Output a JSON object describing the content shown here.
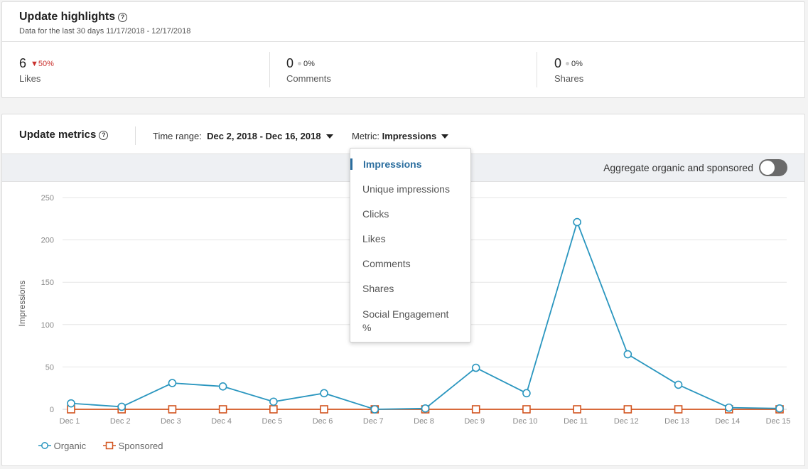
{
  "highlights": {
    "title": "Update highlights",
    "help": "?",
    "subtitle": "Data for the last 30 days 11/17/2018 - 12/17/2018",
    "stats": [
      {
        "value": "6",
        "delta": "50%",
        "delta_dir": "down",
        "label": "Likes"
      },
      {
        "value": "0",
        "delta": "0%",
        "delta_dir": "flat",
        "label": "Comments"
      },
      {
        "value": "0",
        "delta": "0%",
        "delta_dir": "flat",
        "label": "Shares"
      }
    ]
  },
  "metrics": {
    "title": "Update metrics",
    "help": "?",
    "time_range_label": "Time range:",
    "time_range_value": "Dec 2, 2018 - Dec 16, 2018",
    "metric_label": "Metric:",
    "metric_value": "Impressions",
    "aggregate_label": "Aggregate organic and sponsored",
    "aggregate_on": false
  },
  "dropdown": {
    "items": [
      "Impressions",
      "Unique impressions",
      "Clicks",
      "Likes",
      "Comments",
      "Shares",
      "Social Engagement",
      "%"
    ],
    "selected": "Impressions"
  },
  "colors": {
    "organic": "#2a96bf",
    "sponsored": "#d2541f",
    "grid": "#e6e6e6",
    "axis_text": "#888888"
  },
  "chart_data": {
    "type": "line",
    "ylabel": "Impressions",
    "xlabel": "",
    "ylim": [
      0,
      250
    ],
    "yticks": [
      0,
      50,
      100,
      150,
      200,
      250
    ],
    "categories": [
      "Dec 1",
      "Dec 2",
      "Dec 3",
      "Dec 4",
      "Dec 5",
      "Dec 6",
      "Dec 7",
      "Dec 8",
      "Dec 9",
      "Dec 10",
      "Dec 11",
      "Dec 12",
      "Dec 13",
      "Dec 14",
      "Dec 15"
    ],
    "series": [
      {
        "name": "Organic",
        "marker": "circle",
        "values": [
          7,
          3,
          31,
          27,
          9,
          19,
          0,
          1,
          49,
          19,
          221,
          65,
          29,
          2,
          1
        ]
      },
      {
        "name": "Sponsored",
        "marker": "square",
        "values": [
          0,
          0,
          0,
          0,
          0,
          0,
          0,
          0,
          0,
          0,
          0,
          0,
          0,
          0,
          0
        ]
      }
    ],
    "legend": "bottom-left",
    "grid": true
  }
}
